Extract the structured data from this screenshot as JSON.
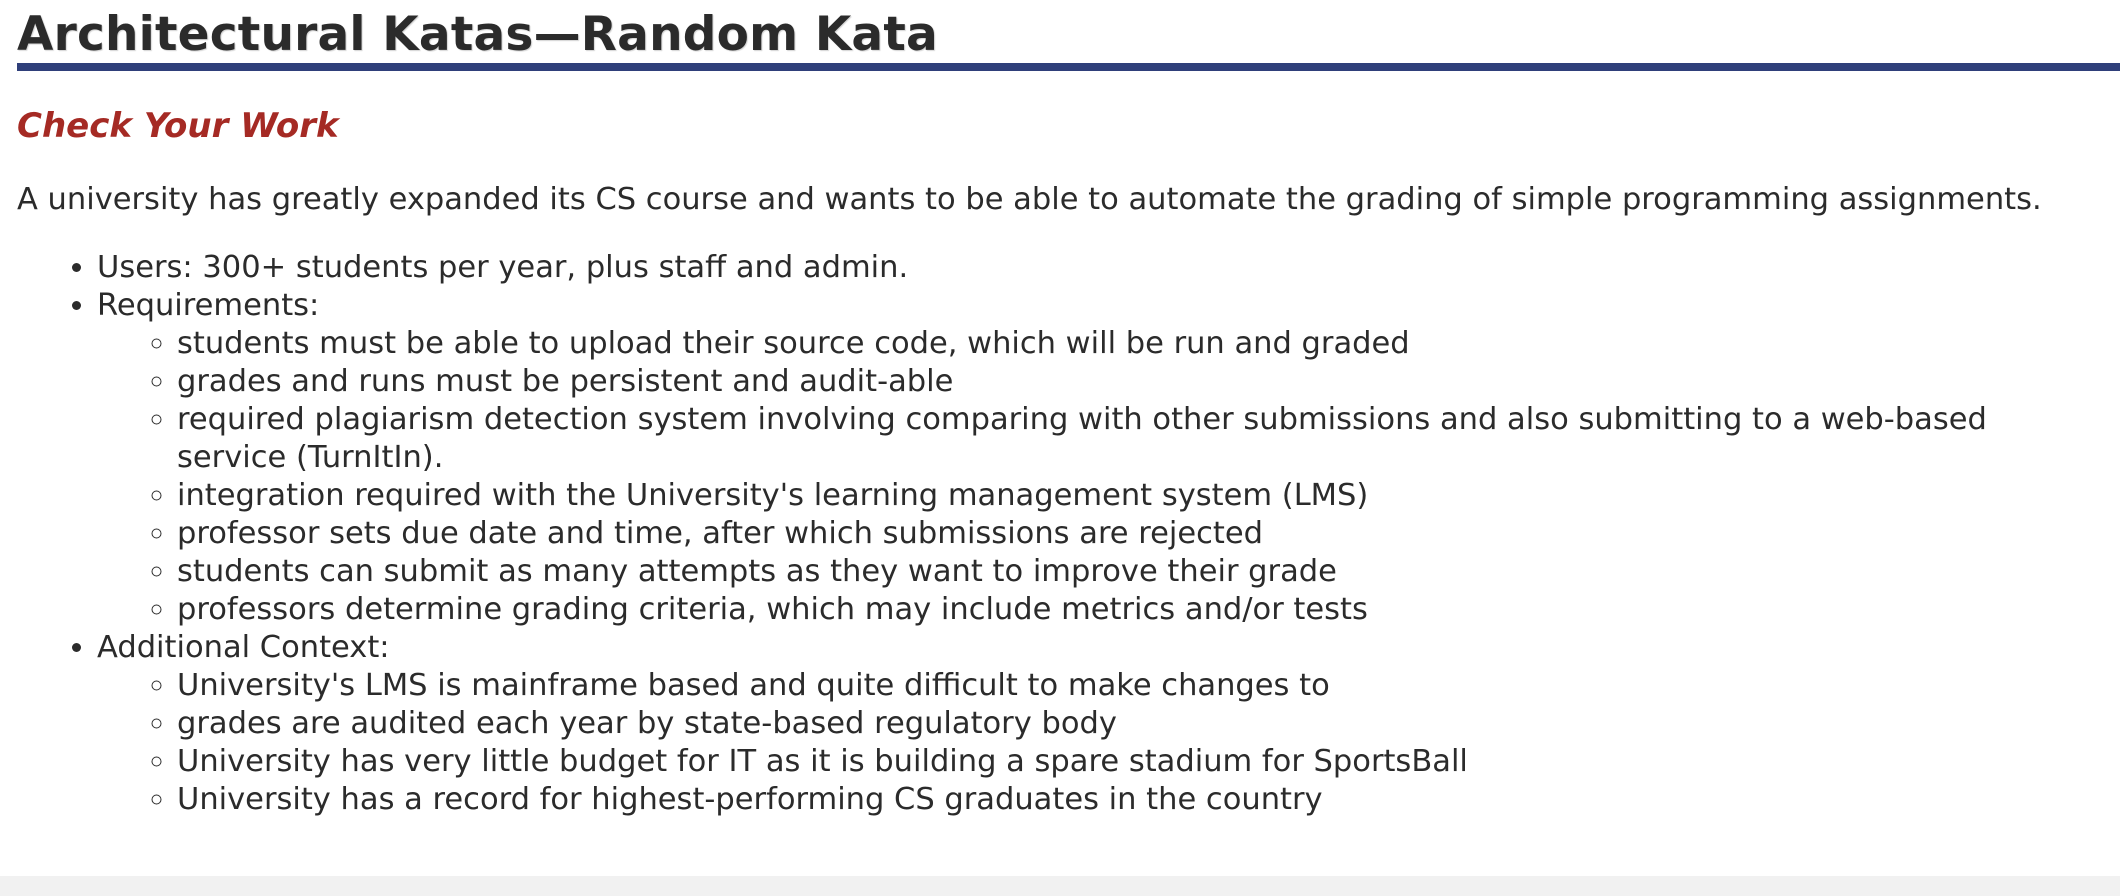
{
  "page": {
    "title": "Architectural Katas—Random Kata",
    "subtitle": "Check Your Work",
    "intro": "A university has greatly expanded its CS course and wants to be able to automate the grading of simple programming assignments."
  },
  "list": {
    "users": "Users: 300+ students per year, plus staff and admin.",
    "requirements_label": "Requirements:",
    "requirements": [
      "students must be able to upload their source code, which will be run and graded",
      "grades and runs must be persistent and audit-able",
      "required plagiarism detection system involving comparing with other submissions and also submitting to a web-based service (TurnItIn).",
      "integration required with the University's learning management system (LMS)",
      "professor sets due date and time, after which submissions are rejected",
      "students can submit as many attempts as they want to improve their grade",
      "professors determine grading criteria, which may include metrics and/or tests"
    ],
    "context_label": "Additional Context:",
    "context": [
      "University's LMS is mainframe based and quite difficult to make changes to",
      "grades are audited each year by state-based regulatory body",
      "University has very little budget for IT as it is building a spare stadium for SportsBall",
      "University has a record for highest-performing CS graduates in the country"
    ]
  },
  "colors": {
    "title_text": "#2b2b2b",
    "title_rule": "#2f3f7a",
    "subtitle_text": "#a52a24",
    "body_text": "#2b2b2b",
    "footer_band": "#f1f1f1"
  }
}
